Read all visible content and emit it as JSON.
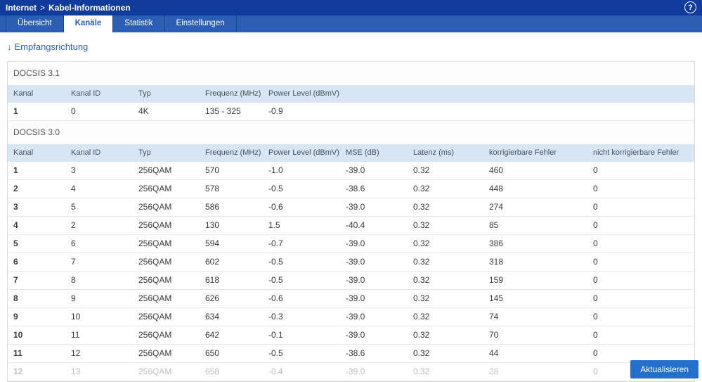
{
  "colors": {
    "topbar": "#0e3b9c",
    "tabbar": "#2a5fb4",
    "tabline": "#16438f",
    "accent": "#2a62b9",
    "thead": "#d8e6f3",
    "button": "#2270cc"
  },
  "header": {
    "breadcrumb_section": "Internet",
    "breadcrumb_separator": ">",
    "breadcrumb_page": "Kabel-Informationen",
    "help_icon": "?"
  },
  "tabs": [
    {
      "label": "Übersicht",
      "active": false
    },
    {
      "label": "Kanäle",
      "active": true
    },
    {
      "label": "Statistik",
      "active": false
    },
    {
      "label": "Einstellungen",
      "active": false
    }
  ],
  "direction": {
    "arrow": "↓",
    "title": "Empfangsrichtung"
  },
  "docsis31": {
    "title": "DOCSIS 3.1",
    "columns": [
      "Kanal",
      "Kanal ID",
      "Typ",
      "Frequenz (MHz)",
      "Power Level (dBmV)"
    ],
    "rows": [
      [
        "1",
        "0",
        "4K",
        "135 - 325",
        "-0.9"
      ]
    ]
  },
  "docsis30": {
    "title": "DOCSIS 3.0",
    "columns": [
      "Kanal",
      "Kanal ID",
      "Typ",
      "Frequenz (MHz)",
      "Power Level (dBmV)",
      "MSE (dB)",
      "Latenz (ms)",
      "korrigierbare Fehler",
      "nicht korrigierbare Fehler"
    ],
    "rows": [
      [
        "1",
        "3",
        "256QAM",
        "570",
        "-1.0",
        "-39.0",
        "0.32",
        "460",
        "0"
      ],
      [
        "2",
        "4",
        "256QAM",
        "578",
        "-0.5",
        "-38.6",
        "0.32",
        "448",
        "0"
      ],
      [
        "3",
        "5",
        "256QAM",
        "586",
        "-0.6",
        "-39.0",
        "0.32",
        "274",
        "0"
      ],
      [
        "4",
        "2",
        "256QAM",
        "130",
        "1.5",
        "-40.4",
        "0.32",
        "85",
        "0"
      ],
      [
        "5",
        "6",
        "256QAM",
        "594",
        "-0.7",
        "-39.0",
        "0.32",
        "386",
        "0"
      ],
      [
        "6",
        "7",
        "256QAM",
        "602",
        "-0.5",
        "-39.0",
        "0.32",
        "318",
        "0"
      ],
      [
        "7",
        "8",
        "256QAM",
        "618",
        "-0.5",
        "-39.0",
        "0.32",
        "159",
        "0"
      ],
      [
        "8",
        "9",
        "256QAM",
        "626",
        "-0.6",
        "-39.0",
        "0.32",
        "145",
        "0"
      ],
      [
        "9",
        "10",
        "256QAM",
        "634",
        "-0.3",
        "-39.0",
        "0.32",
        "74",
        "0"
      ],
      [
        "10",
        "11",
        "256QAM",
        "642",
        "-0.1",
        "-39.0",
        "0.32",
        "70",
        "0"
      ],
      [
        "11",
        "12",
        "256QAM",
        "650",
        "-0.5",
        "-38.6",
        "0.32",
        "44",
        "0"
      ],
      [
        "12",
        "13",
        "256QAM",
        "658",
        "-0.4",
        "-39.0",
        "0.32",
        "28",
        "0"
      ]
    ]
  },
  "refresh_button": {
    "label": "Aktualisieren"
  }
}
